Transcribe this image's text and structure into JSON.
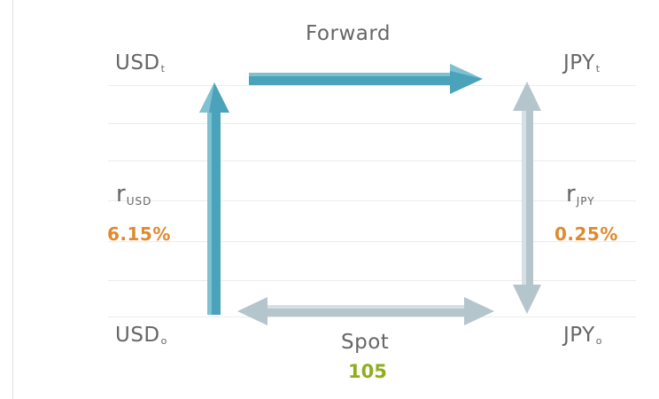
{
  "labels": {
    "top_left": {
      "base": "USD",
      "sub": "t"
    },
    "top_right": {
      "base": "JPY",
      "sub": "t"
    },
    "bottom_left": {
      "base": "USD",
      "sub": "o"
    },
    "bottom_right": {
      "base": "JPY",
      "sub": "o"
    },
    "forward": "Forward",
    "spot": "Spot",
    "spot_value": "105",
    "rate_usd": {
      "symbol": "r",
      "sub": "USD",
      "value": "6.15%"
    },
    "rate_jpy": {
      "symbol": "r",
      "sub": "JPY",
      "value": "0.25%"
    }
  },
  "colors": {
    "teal_arrow": "#4aa3bb",
    "grey_arrow": "#b5c5cc",
    "rate_value": "#e08a2e",
    "spot_value": "#8fae1b",
    "text": "#666666"
  }
}
